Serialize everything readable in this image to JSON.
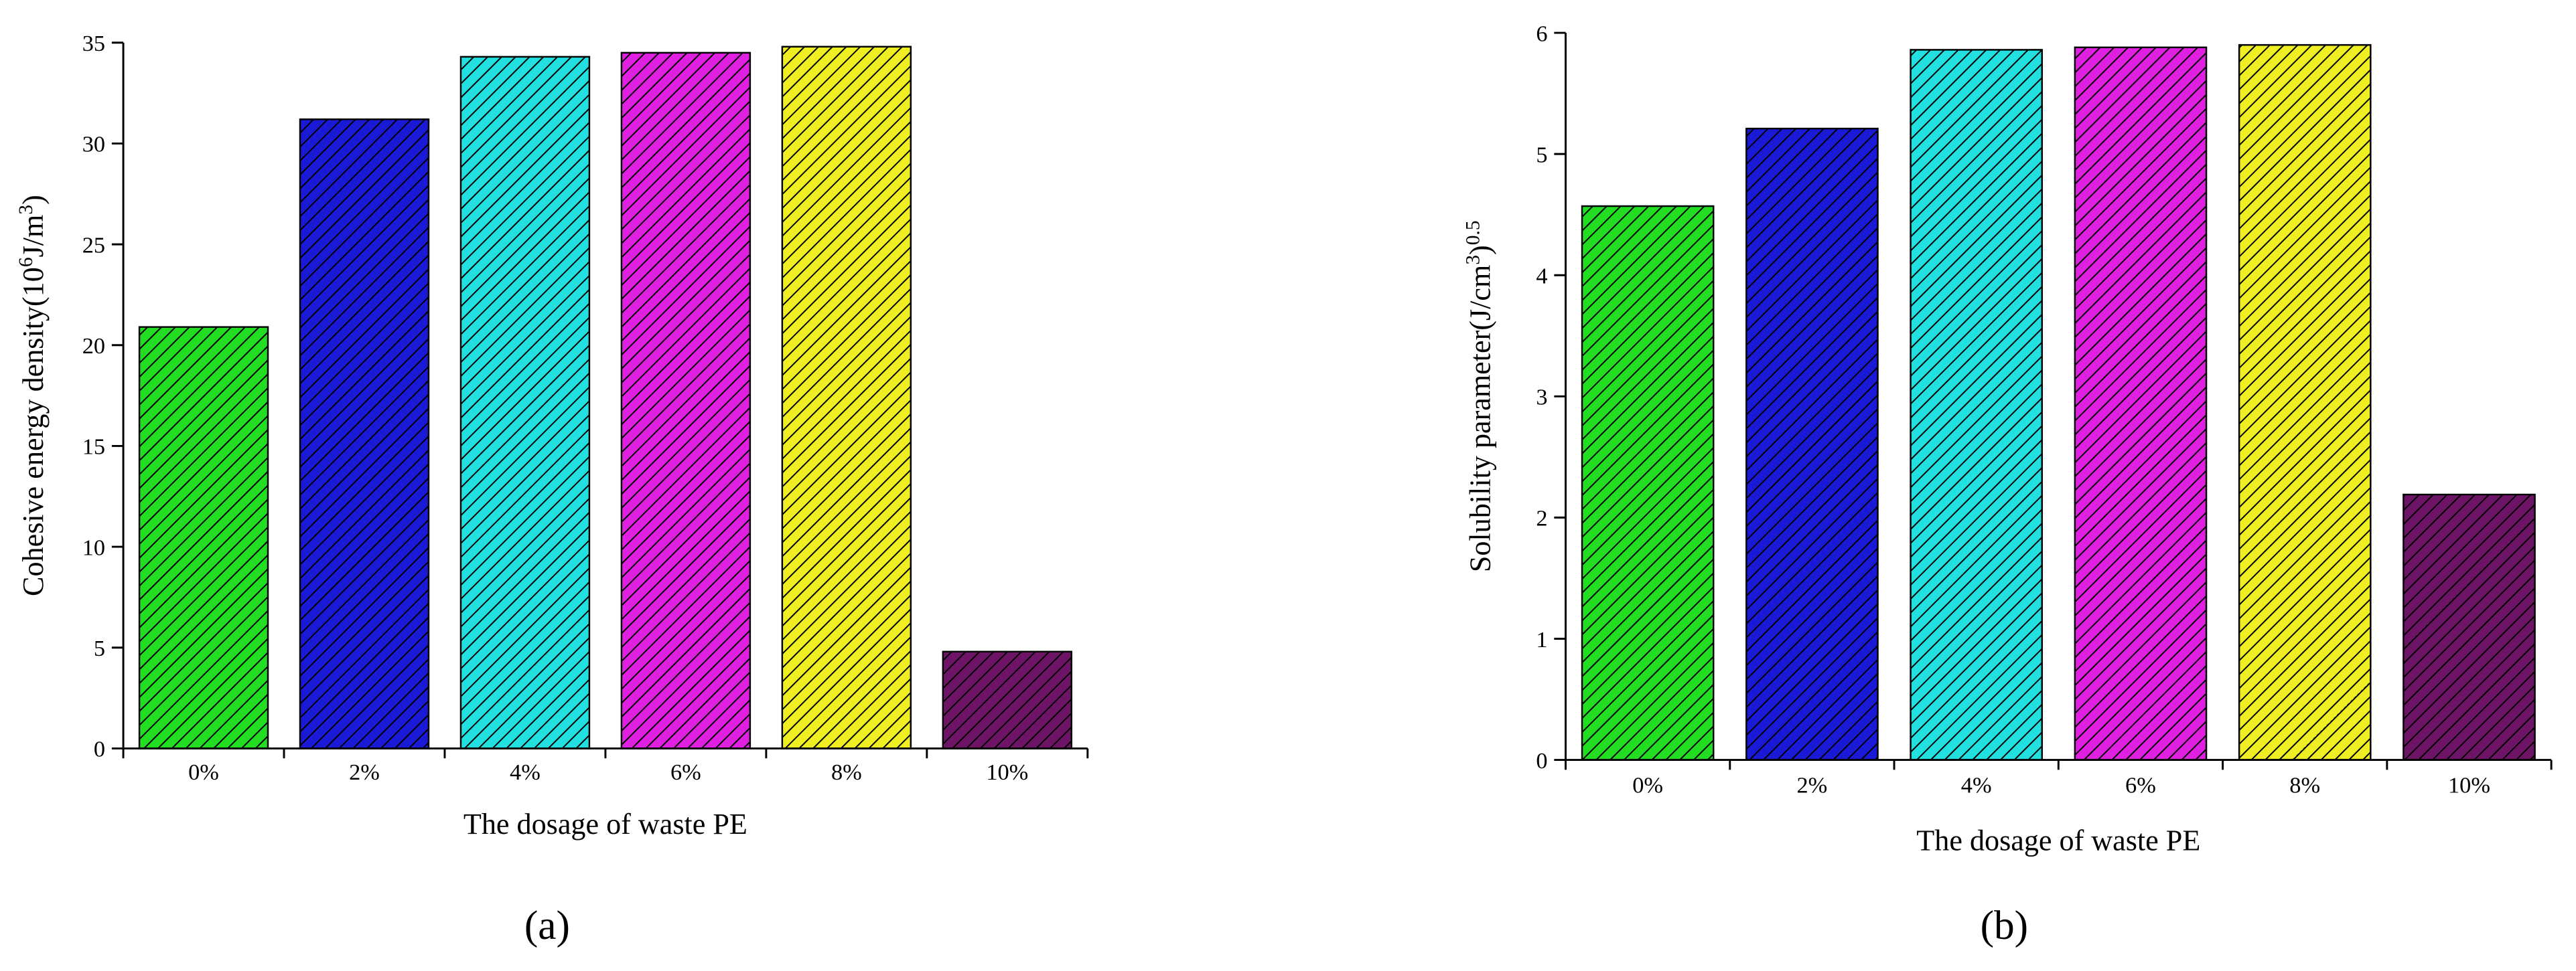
{
  "chart_data": [
    {
      "type": "bar",
      "label": "(a)",
      "xlabel": "The dosage of waste PE",
      "ylabel": [
        "Cohesive energy density(10",
        "6",
        "J/m",
        "3",
        ")"
      ],
      "categories": [
        "0%",
        "2%",
        "4%",
        "6%",
        "8%",
        "10%"
      ],
      "values": [
        20.9,
        31.2,
        34.3,
        34.5,
        34.8,
        4.8
      ],
      "colors": [
        "#22dd22",
        "#1a1ad6",
        "#22e0e0",
        "#e020e0",
        "#eeee22",
        "#6e1466"
      ],
      "ylim": [
        0,
        35
      ],
      "yticks": [
        0,
        5,
        10,
        15,
        20,
        25,
        30,
        35
      ],
      "hatch": true
    },
    {
      "type": "bar",
      "label": "(b)",
      "xlabel": "The dosage of waste PE",
      "ylabel": [
        "Solubility parameter(J/cm",
        "3",
        ")",
        "0.5"
      ],
      "categories": [
        "0%",
        "2%",
        "4%",
        "6%",
        "8%",
        "10%"
      ],
      "values": [
        4.57,
        5.21,
        5.86,
        5.88,
        5.9,
        2.19
      ],
      "colors": [
        "#22dd22",
        "#1a1ad6",
        "#22e0e0",
        "#e020e0",
        "#eeee22",
        "#6e1466"
      ],
      "ylim": [
        0,
        6
      ],
      "yticks": [
        0,
        1,
        2,
        3,
        4,
        5,
        6
      ],
      "hatch": true
    }
  ]
}
